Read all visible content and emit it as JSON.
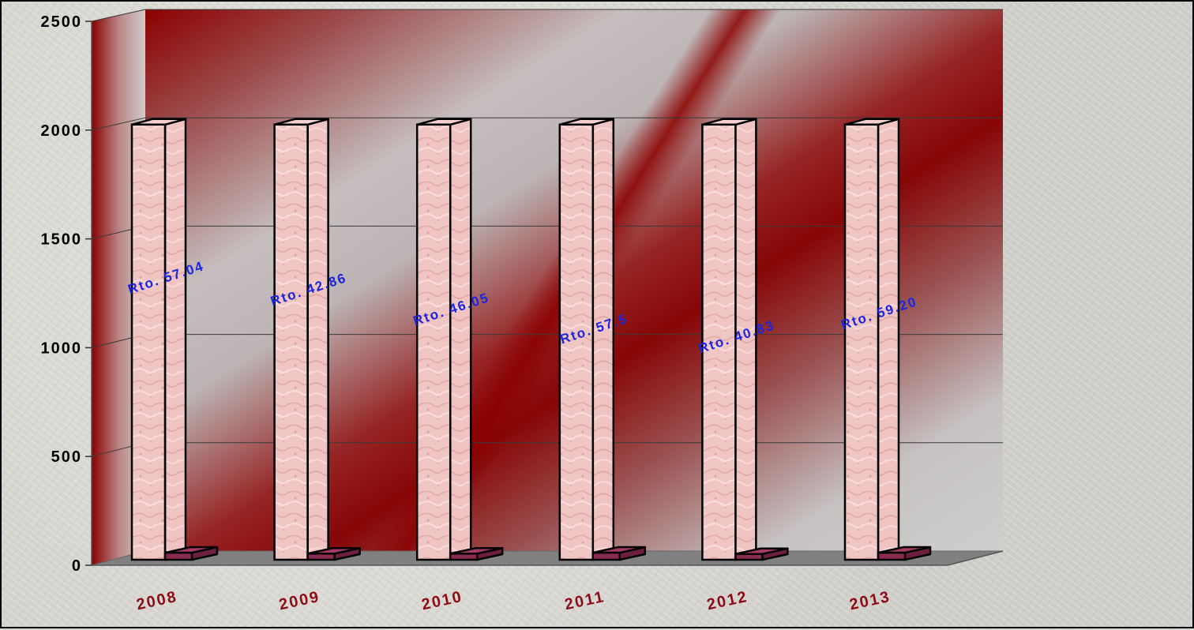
{
  "chart_data": {
    "type": "bar",
    "title": "",
    "xlabel": "",
    "ylabel": "",
    "ylim": [
      0,
      2500
    ],
    "yticks": [
      0,
      500,
      1000,
      1500,
      2000,
      2500
    ],
    "categories": [
      "2008",
      "2009",
      "2010",
      "2011",
      "2012",
      "2013"
    ],
    "series": [
      {
        "values": [
          2000,
          2000,
          2000,
          2000,
          2000,
          2000
        ]
      },
      {
        "values": [
          60,
          45,
          45,
          60,
          40,
          60
        ]
      }
    ],
    "annotations": [
      "Rto. 57.04",
      "Rto. 42.86",
      "Rto. 46.05",
      "Rto. 57.5",
      "Rto. 40.83",
      "Rto. 59.20"
    ],
    "colors": {
      "bar_primary": "#f0c8c6",
      "bar_secondary": "#8c2b52",
      "wall_dark": "#8b0000",
      "wall_light": "#cfcfcf",
      "annotation": "#1b25e0",
      "category_label": "#8b0d16"
    },
    "grid": true,
    "legend": "none"
  }
}
